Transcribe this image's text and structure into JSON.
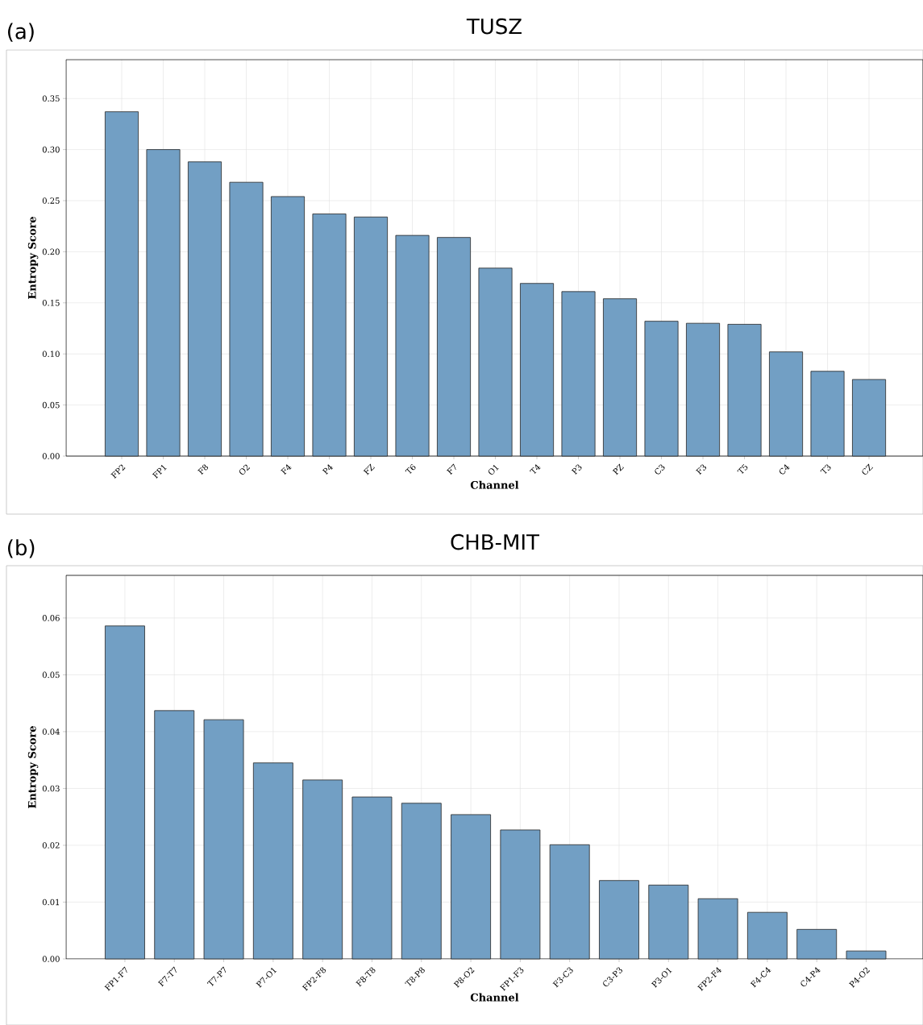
{
  "chart_data": [
    {
      "type": "bar",
      "title": "TUSZ",
      "annotations": [
        "(a)"
      ],
      "xlabel": "Channel",
      "ylabel": "Entropy Score",
      "color": "#729fc4",
      "grid": true,
      "categories": [
        "FP2",
        "FP1",
        "F8",
        "O2",
        "F4",
        "P4",
        "FZ",
        "T6",
        "F7",
        "O1",
        "T4",
        "P3",
        "PZ",
        "C3",
        "F3",
        "T5",
        "C4",
        "T3",
        "CZ"
      ],
      "values": [
        0.337,
        0.3,
        0.288,
        0.268,
        0.254,
        0.237,
        0.234,
        0.216,
        0.214,
        0.184,
        0.169,
        0.161,
        0.154,
        0.132,
        0.13,
        0.129,
        0.102,
        0.083,
        0.075
      ],
      "ylim": [
        0,
        0.388
      ],
      "yticks": [
        {
          "value": 0,
          "label": "0.00"
        },
        0.05,
        {
          "value": 0.1,
          "label": "0.10"
        },
        0.15,
        {
          "value": 0.2,
          "label": "0.20"
        },
        0.25,
        {
          "value": 0.3,
          "label": "0.30"
        },
        0.35
      ]
    },
    {
      "type": "bar",
      "title": "CHB-MIT",
      "annotations": [
        "(b)"
      ],
      "xlabel": "Channel",
      "ylabel": "Entropy Score",
      "color": "#729fc4",
      "grid": true,
      "categories": [
        "FP1-F7",
        "F7-T7",
        "T7-P7",
        "P7-O1",
        "FP2-F8",
        "F8-T8",
        "T8-P8",
        "P8-O2",
        "FP1-F3",
        "F3-C3",
        "C3-P3",
        "P3-O1",
        "FP2-F4",
        "F4-C4",
        "C4-P4",
        "P4-O2"
      ],
      "values": [
        0.0586,
        0.0437,
        0.0421,
        0.0345,
        0.0315,
        0.0285,
        0.0274,
        0.0254,
        0.0227,
        0.0201,
        0.0138,
        0.013,
        0.0106,
        0.0082,
        0.0052,
        0.0014
      ],
      "ylim": [
        0,
        0.0675
      ],
      "yticks": [
        {
          "value": 0,
          "label": "0.00"
        },
        0.01,
        0.02,
        0.03,
        0.04,
        0.05,
        0.06
      ]
    }
  ]
}
